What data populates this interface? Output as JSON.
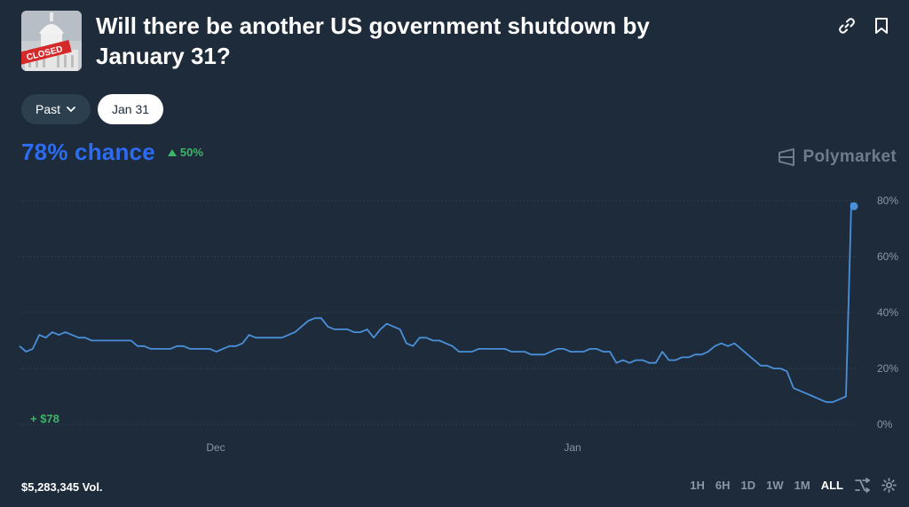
{
  "market": {
    "title": "Will there be another US government shutdown by January 31?",
    "thumbnail_stamp": "CLOSED"
  },
  "filters": {
    "past_label": "Past",
    "date_label": "Jan 31"
  },
  "probability": {
    "chance_text": "78% chance",
    "delta_text": "50%"
  },
  "brand": {
    "name": "Polymarket"
  },
  "position": {
    "gain_text": "+ $78"
  },
  "footer": {
    "volume_text": "$5,283,345 Vol.",
    "ranges": [
      "1H",
      "6H",
      "1D",
      "1W",
      "1M",
      "ALL"
    ],
    "active_range": "ALL"
  },
  "colors": {
    "line": "#4a90d9",
    "chance": "#2d6cf0",
    "positive": "#3db468",
    "background": "#1d2b3a"
  },
  "icons": [
    "link-icon",
    "bookmark-icon",
    "chevron-down-icon",
    "triangle-up-icon",
    "polymarket-logo-icon",
    "shuffle-icon",
    "gear-icon"
  ],
  "chart_data": {
    "type": "line",
    "y_ticks": [
      "80%",
      "60%",
      "40%",
      "20%",
      "0%"
    ],
    "x_ticks": [
      "Dec",
      "Jan"
    ],
    "ylim": [
      0,
      80
    ],
    "grid": true,
    "series": [
      {
        "values": [
          28,
          26,
          27,
          32,
          31,
          33,
          32,
          33,
          32,
          31,
          31,
          30,
          30,
          30,
          30,
          30,
          30,
          30,
          28,
          28,
          27,
          27,
          27,
          27,
          28,
          28,
          27,
          27,
          27,
          27,
          26,
          27,
          28,
          28,
          29,
          32,
          31,
          31,
          31,
          31,
          31,
          32,
          33,
          35,
          37,
          38,
          38,
          35,
          34,
          34,
          34,
          33,
          33,
          34,
          31,
          34,
          36,
          35,
          34,
          29,
          28,
          31,
          31,
          30,
          30,
          29,
          28,
          26,
          26,
          26,
          27,
          27,
          27,
          27,
          27,
          26,
          26,
          26,
          25,
          25,
          25,
          26,
          27,
          27,
          26,
          26,
          26,
          27,
          27,
          26,
          26,
          22,
          23,
          22,
          23,
          23,
          22,
          22,
          26,
          23,
          23,
          24,
          24,
          25,
          25,
          26,
          28,
          29,
          28,
          29,
          27,
          25,
          23,
          21,
          21,
          20,
          20,
          19,
          13,
          12,
          11,
          10,
          9,
          8,
          8,
          9,
          10,
          79,
          78
        ]
      }
    ]
  }
}
